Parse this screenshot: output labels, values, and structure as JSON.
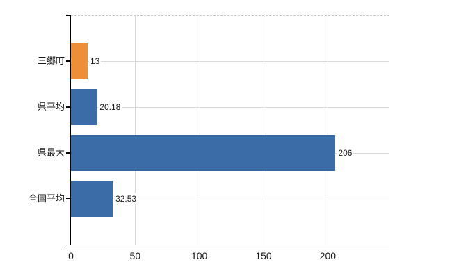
{
  "chart_data": {
    "type": "bar",
    "orientation": "horizontal",
    "title": "",
    "categories": [
      "三郷町",
      "県平均",
      "県最大",
      "全国平均"
    ],
    "values": [
      13,
      20.18,
      206,
      32.53
    ],
    "value_labels": [
      "13",
      "20.18",
      "206",
      "32.53"
    ],
    "bar_colors": [
      "#EC8F38",
      "#3C6CA8",
      "#3C6CA8",
      "#3C6CA8"
    ],
    "x_ticks": [
      0,
      50,
      100,
      150,
      200
    ],
    "x_tick_labels": [
      "0",
      "50",
      "100",
      "150",
      "200"
    ],
    "xlim": [
      0,
      248
    ],
    "grid": true,
    "legend": "none",
    "colors": {
      "bar_highlight": "#EC8F38",
      "bar_default": "#3C6CA8",
      "gridline": "#D9D9D9",
      "top_border": "#C6C6C6",
      "axis": "#000000",
      "text": "#1A1A1A",
      "background": "#FFFFFF"
    }
  }
}
